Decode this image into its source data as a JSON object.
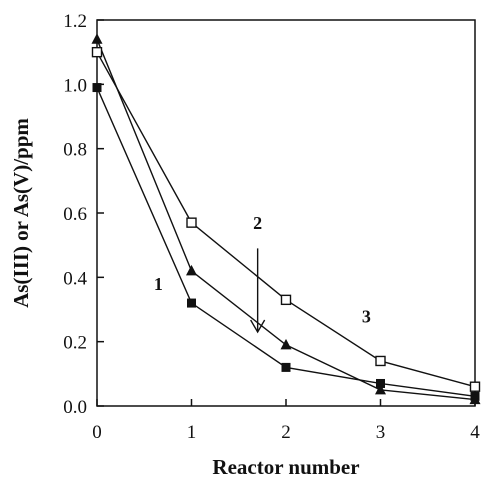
{
  "chart_data": {
    "type": "line",
    "title": "",
    "xlabel": "Reactor number",
    "ylabel": "As(III) or As(V)/ppm",
    "xlim": [
      0,
      4
    ],
    "ylim": [
      0,
      1.2
    ],
    "x": [
      0,
      1,
      2,
      3,
      4
    ],
    "x_tick_labels": [
      "0",
      "1",
      "2",
      "3",
      "4"
    ],
    "y_ticks": [
      0,
      0.2,
      0.4,
      0.6,
      0.8,
      1.0,
      1.2
    ],
    "y_tick_labels": [
      "0.0",
      "0.2",
      "0.4",
      "0.6",
      "0.8",
      "1.0",
      "1.2"
    ],
    "grid": false,
    "legend": "none",
    "series": [
      {
        "marker": "filled-square",
        "color": "#111111",
        "values": [
          0.99,
          0.32,
          0.12,
          0.07,
          0.03
        ]
      },
      {
        "marker": "filled-triangle",
        "color": "#111111",
        "values": [
          1.14,
          0.42,
          0.19,
          0.05,
          0.02
        ]
      },
      {
        "marker": "open-square",
        "color": "#111111",
        "values": [
          1.1,
          0.57,
          0.33,
          0.14,
          0.06
        ]
      }
    ],
    "annotations": [
      {
        "text": "1",
        "x": 0.65,
        "y": 0.36
      },
      {
        "text": "2",
        "x": 1.7,
        "y": 0.55
      },
      {
        "text": "3",
        "x": 2.85,
        "y": 0.26
      }
    ],
    "arrow": {
      "from": [
        1.7,
        0.49
      ],
      "to": [
        1.7,
        0.23
      ]
    }
  }
}
